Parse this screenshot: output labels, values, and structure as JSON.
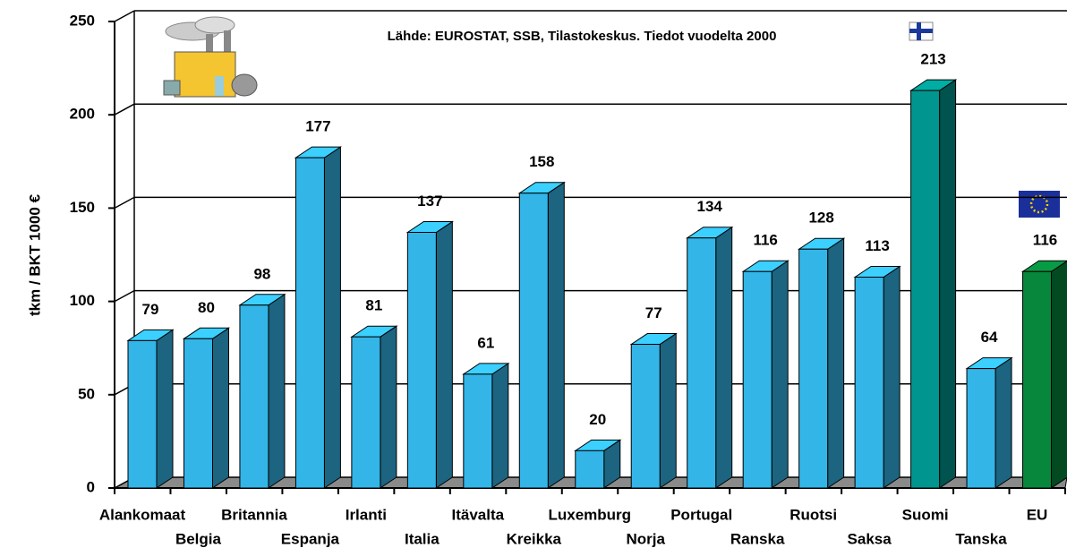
{
  "chart_data": {
    "type": "bar3d",
    "annotation": "Lähde: EUROSTAT, SSB, Tilastokeskus. Tiedot vuodelta 2000",
    "y_label": "tkm / BKT 1000 €",
    "categories": [
      "Alankomaat",
      "Belgia",
      "Britannia",
      "Espanja",
      "Irlanti",
      "Italia",
      "Itävalta",
      "Kreikka",
      "Luxemburg",
      "Norja",
      "Portugal",
      "Ranska",
      "Ruotsi",
      "Saksa",
      "Suomi",
      "Tanska",
      "EU"
    ],
    "values": [
      79,
      80,
      98,
      177,
      81,
      137,
      61,
      158,
      20,
      77,
      134,
      116,
      128,
      113,
      213,
      64,
      116
    ],
    "colors": [
      "#33b5e8",
      "#33b5e8",
      "#33b5e8",
      "#33b5e8",
      "#33b5e8",
      "#33b5e8",
      "#33b5e8",
      "#33b5e8",
      "#33b5e8",
      "#33b5e8",
      "#33b5e8",
      "#33b5e8",
      "#33b5e8",
      "#33b5e8",
      "#00968f",
      "#33b5e8",
      "#07873c"
    ],
    "ylim": [
      0,
      250
    ],
    "yticks": [
      0,
      50,
      100,
      150,
      200,
      250
    ],
    "grid": true
  }
}
